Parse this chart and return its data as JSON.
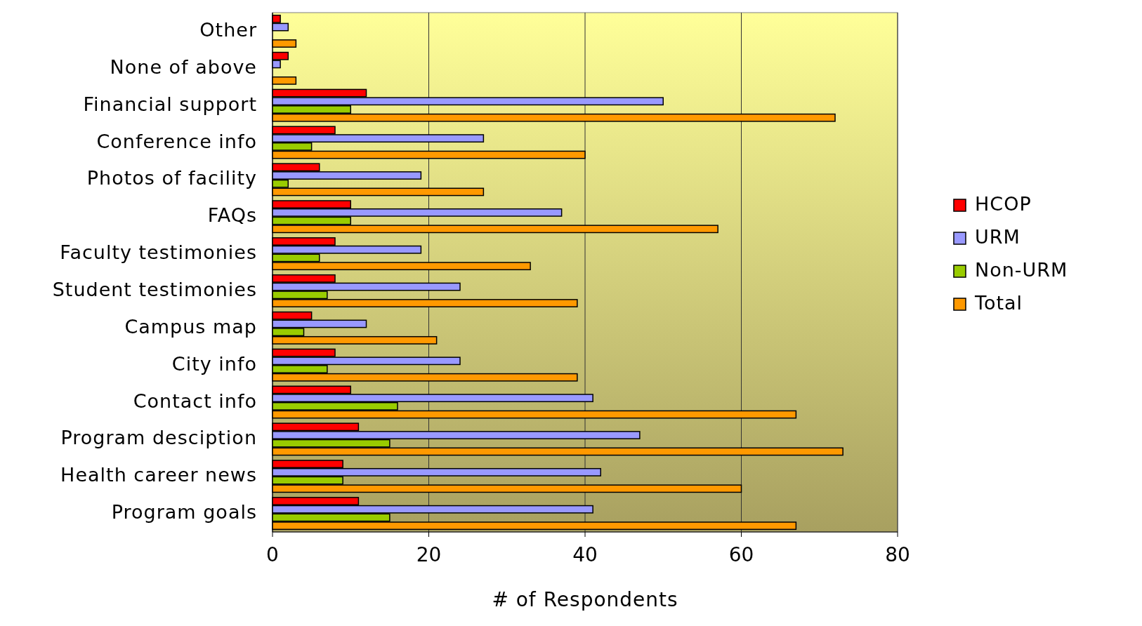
{
  "chart_data": {
    "type": "bar",
    "orientation": "horizontal",
    "xlabel": "# of Respondents",
    "categories": [
      "Other",
      "None of above",
      "Financial support",
      "Conference info",
      "Photos of facility",
      "FAQs",
      "Faculty testimonies",
      "Student testimonies",
      "Campus map",
      "City info",
      "Contact info",
      "Program desciption",
      "Health career news",
      "Program goals"
    ],
    "series": [
      {
        "name": "HCOP",
        "color": "#ff0000",
        "values": [
          1,
          2,
          12,
          8,
          6,
          10,
          8,
          8,
          5,
          8,
          10,
          11,
          9,
          11
        ]
      },
      {
        "name": "URM",
        "color": "#9999ff",
        "values": [
          2,
          1,
          50,
          27,
          19,
          37,
          19,
          24,
          12,
          24,
          41,
          47,
          42,
          41
        ]
      },
      {
        "name": "Non-URM",
        "color": "#99cc00",
        "values": [
          0,
          0,
          10,
          5,
          2,
          10,
          6,
          7,
          4,
          7,
          16,
          15,
          9,
          15
        ]
      },
      {
        "name": "Total",
        "color": "#ff9900",
        "values": [
          3,
          3,
          72,
          40,
          27,
          57,
          33,
          39,
          21,
          39,
          67,
          73,
          60,
          67
        ]
      }
    ],
    "xlim": [
      0,
      80
    ],
    "xticks": [
      0,
      20,
      40,
      60,
      80
    ],
    "grid": "x",
    "legend": "right"
  }
}
